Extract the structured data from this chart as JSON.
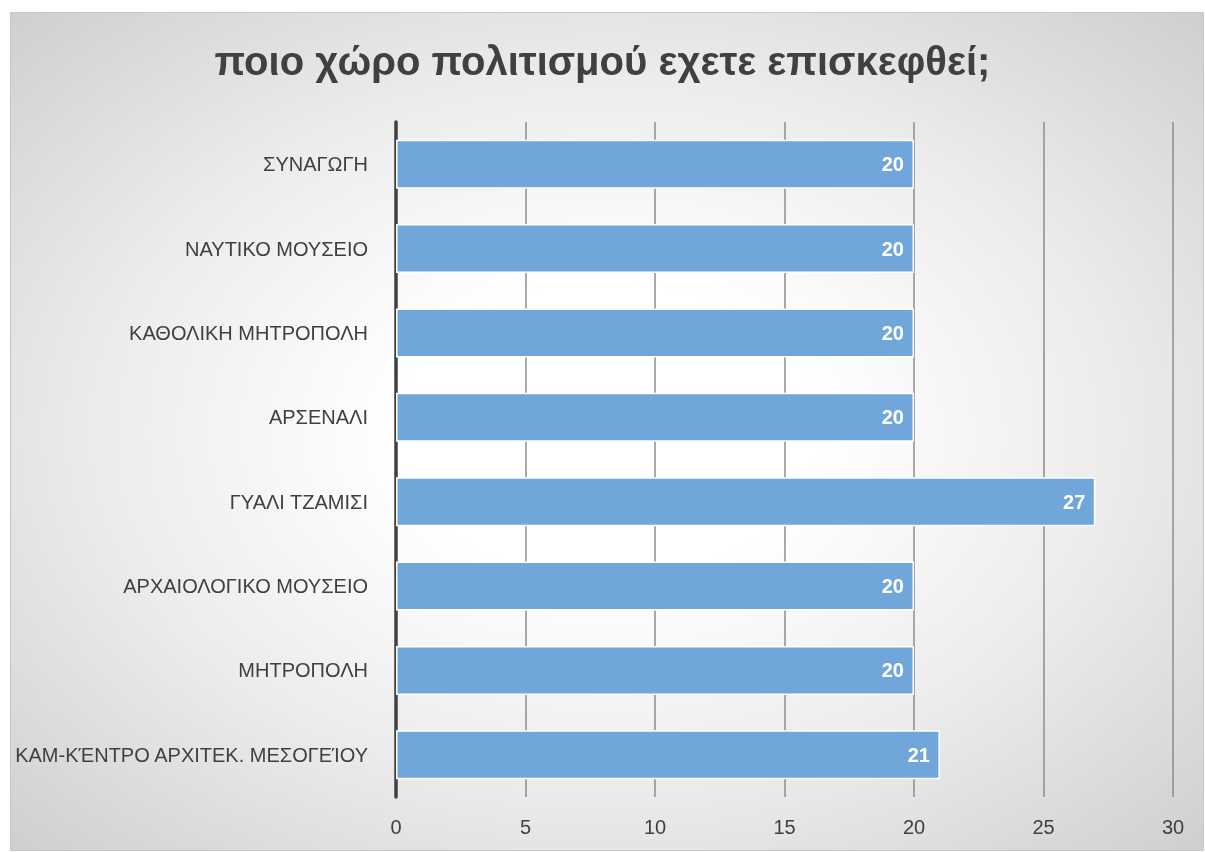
{
  "chart_data": {
    "type": "bar",
    "orientation": "horizontal",
    "title": "ποιο χώρο πολιτισμού εχετε επισκεφθεί;",
    "categories": [
      "ΣΥΝΑΓΩΓΗ",
      "ΝΑΥΤΙΚΟ ΜΟΥΣΕΙΟ",
      "ΚΑΘΟΛΙΚΗ ΜΗΤΡΟΠΟΛΗ",
      "ΑΡΣΕΝΑΛΙ",
      "ΓΥΑΛΙ ΤΖΑΜΙΣΙ",
      "ΑΡΧΑΙΟΛΟΓΙΚΟ ΜΟΥΣΕΙΟ",
      "ΜΗΤΡΟΠΟΛΗ",
      "ΚΑΜ-ΚΈΝΤΡΟ ΑΡΧΙΤΕΚ. ΜΕΣΟΓΕΊΟΥ"
    ],
    "values": [
      20,
      20,
      20,
      20,
      27,
      20,
      20,
      21
    ],
    "color": "#70a6da",
    "xlim": [
      0,
      30
    ],
    "xticks": [
      0,
      5,
      10,
      15,
      20,
      25,
      30
    ],
    "grid": "x",
    "data_labels": true
  }
}
